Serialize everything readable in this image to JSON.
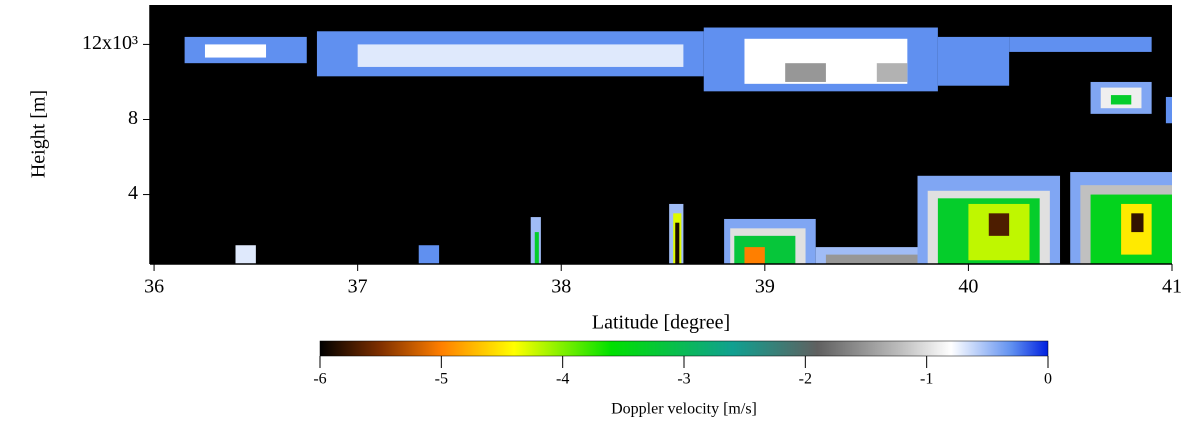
{
  "chart_data": {
    "type": "heatmap",
    "x_label": "Latitude [degree]",
    "y_label": "Height [m]",
    "xlim": [
      35.98,
      41
    ],
    "xticks": [
      36,
      37,
      38,
      39,
      40,
      41
    ],
    "ylim": [
      300,
      14100
    ],
    "yticks": [
      {
        "value": 4000,
        "label": "4"
      },
      {
        "value": 8000,
        "label": "8"
      },
      {
        "value": 12000,
        "label": "12x10³"
      }
    ],
    "background": "#000000",
    "cells": [
      [
        36.15,
        36.75,
        11000,
        12400,
        -0.3
      ],
      [
        36.25,
        36.55,
        11300,
        12000,
        -0.8
      ],
      [
        36.8,
        38.7,
        10300,
        12700,
        -0.3
      ],
      [
        37.0,
        38.6,
        10800,
        12000,
        -0.7
      ],
      [
        38.7,
        39.85,
        9500,
        12900,
        -0.3
      ],
      [
        38.9,
        39.7,
        9900,
        12300,
        -0.8
      ],
      [
        39.1,
        39.3,
        10000,
        11000,
        -1.5
      ],
      [
        39.55,
        39.7,
        10000,
        11000,
        -1.3
      ],
      [
        39.85,
        40.2,
        9800,
        12400,
        -0.3
      ],
      [
        40.2,
        40.9,
        11600,
        12400,
        -0.3
      ],
      [
        40.6,
        40.9,
        8300,
        10000,
        -0.4
      ],
      [
        40.65,
        40.85,
        8600,
        9700,
        -0.9
      ],
      [
        40.7,
        40.8,
        8800,
        9300,
        -3.3
      ],
      [
        40.97,
        41,
        7800,
        9200,
        -0.3
      ],
      [
        36.4,
        36.5,
        300,
        1300,
        -0.7
      ],
      [
        37.3,
        37.4,
        300,
        1300,
        -0.3
      ],
      [
        37.85,
        37.9,
        300,
        2800,
        -0.5
      ],
      [
        37.87,
        37.89,
        300,
        2000,
        -3.3
      ],
      [
        38.53,
        38.6,
        300,
        3500,
        -0.5
      ],
      [
        38.55,
        38.59,
        300,
        3000,
        -4.3
      ],
      [
        38.56,
        38.58,
        300,
        2500,
        -5.9
      ],
      [
        38.8,
        39.25,
        300,
        2700,
        -0.4
      ],
      [
        38.83,
        39.2,
        300,
        2200,
        -1.0
      ],
      [
        38.85,
        39.15,
        300,
        1800,
        -3.2
      ],
      [
        38.9,
        39.0,
        300,
        1200,
        -5.0
      ],
      [
        39.25,
        39.8,
        300,
        1200,
        -0.5
      ],
      [
        39.3,
        39.75,
        300,
        800,
        -1.5
      ],
      [
        39.75,
        40.45,
        300,
        5000,
        -0.4
      ],
      [
        39.8,
        40.4,
        300,
        4200,
        -1.0
      ],
      [
        39.85,
        40.35,
        300,
        3800,
        -3.3
      ],
      [
        40.0,
        40.3,
        500,
        3500,
        -4.2
      ],
      [
        40.1,
        40.2,
        1800,
        3000,
        -5.7
      ],
      [
        40.5,
        41,
        300,
        5200,
        -0.4
      ],
      [
        40.55,
        41,
        300,
        4500,
        -1.2
      ],
      [
        40.6,
        41,
        300,
        4000,
        -3.4
      ],
      [
        40.75,
        40.9,
        800,
        3500,
        -4.5
      ],
      [
        40.8,
        40.86,
        2000,
        3000,
        -5.8
      ]
    ],
    "colorbar": {
      "label": "Doppler velocity [m/s]",
      "lim": [
        -6,
        0
      ],
      "ticks": [
        -6,
        -5,
        -4,
        -3,
        -2,
        -1,
        0
      ],
      "colormap": [
        {
          "value": -6,
          "color": "#000000"
        },
        {
          "value": -5.5,
          "color": "#803000"
        },
        {
          "value": -5,
          "color": "#ff7f00"
        },
        {
          "value": -4.4,
          "color": "#ffff00"
        },
        {
          "value": -3.6,
          "color": "#00e000"
        },
        {
          "value": -2.6,
          "color": "#10a090"
        },
        {
          "value": -1.9,
          "color": "#606060"
        },
        {
          "value": -1.2,
          "color": "#c0c0c0"
        },
        {
          "value": -0.8,
          "color": "#ffffff"
        },
        {
          "value": -0.3,
          "color": "#6090f0"
        },
        {
          "value": 0,
          "color": "#0020e0"
        }
      ]
    }
  }
}
